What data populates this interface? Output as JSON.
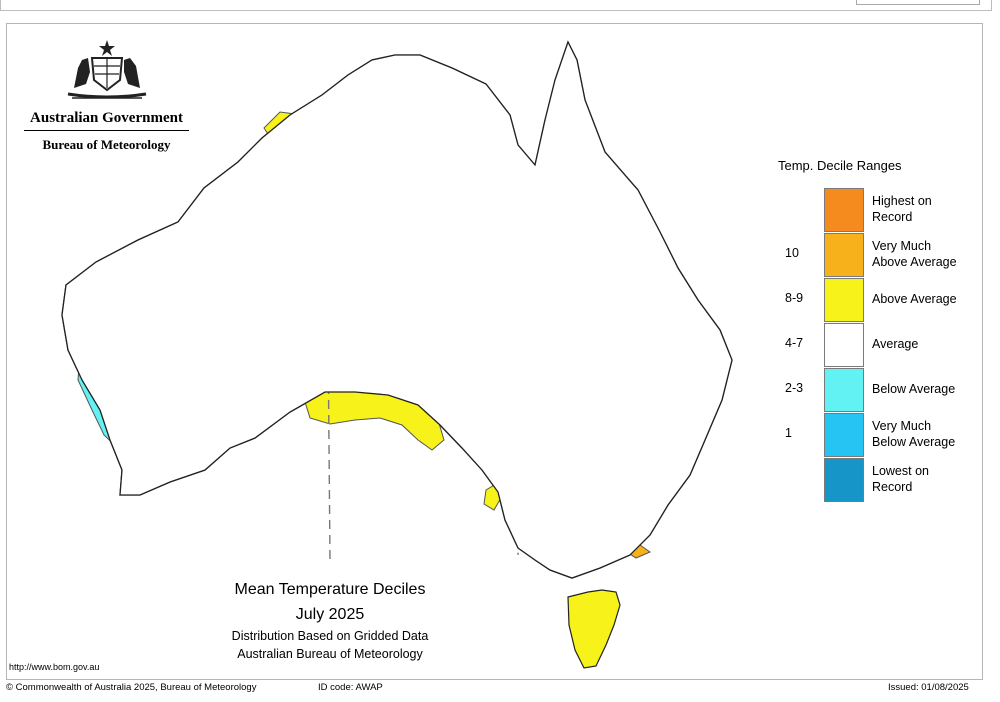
{
  "logo": {
    "gov_title": "Australian Government",
    "gov_subtitle": "Bureau of Meteorology"
  },
  "legend": {
    "title": "Temp. Decile Ranges",
    "items": [
      {
        "label": "Highest on\nRecord",
        "range": "",
        "color": "#f58a1f"
      },
      {
        "label": "Very Much\nAbove Average",
        "range": "10",
        "color": "#f7b21b"
      },
      {
        "label": "Above Average",
        "range": "8-9",
        "color": "#f7f21a"
      },
      {
        "label": "Average",
        "range": "4-7",
        "color": "#ffffff"
      },
      {
        "label": "Below Average",
        "range": "2-3",
        "color": "#62f2f4"
      },
      {
        "label": "Very Much\nBelow Average",
        "range": "1",
        "color": "#25c4f2"
      },
      {
        "label": "Lowest on\nRecord",
        "range": "",
        "color": "#1595c8"
      }
    ]
  },
  "caption": {
    "title": "Mean Temperature Deciles",
    "period": "July 2025",
    "line3": "Distribution Based on Gridded Data",
    "line4": "Australian Bureau of Meteorology"
  },
  "url": "http://www.bom.gov.au",
  "footer": {
    "copyright": "© Commonwealth of Australia 2025, Bureau of Meteorology",
    "id_code": "ID code: AWAP",
    "issued": "Issued: 01/08/2025"
  },
  "map_colors": {
    "coast": "#222222",
    "border": "#777777",
    "very_much_above": "#f7b21b",
    "above": "#f7f21a",
    "below": "#62f2f4",
    "highest": "#f58a1f"
  }
}
